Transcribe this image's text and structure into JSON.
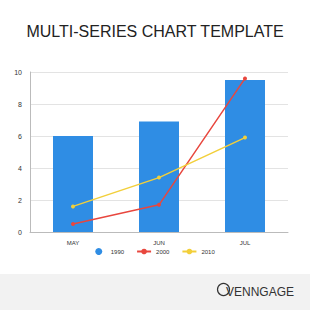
{
  "chart_data": {
    "type": "bar",
    "title": "MULTI-SERIES CHART TEMPLATE",
    "categories": [
      "MAY",
      "JUN",
      "JUL"
    ],
    "series": [
      {
        "name": "1990",
        "type": "bar",
        "color": "#2f8de4",
        "values": [
          6.0,
          6.9,
          9.5
        ]
      },
      {
        "name": "2000",
        "type": "line",
        "color": "#e8473e",
        "marker": "circle",
        "values": [
          0.5,
          1.7,
          9.6
        ]
      },
      {
        "name": "2010",
        "type": "line",
        "color": "#f2cf3a",
        "marker": "circle",
        "values": [
          1.6,
          3.4,
          5.9
        ]
      }
    ],
    "ylim": [
      0,
      10
    ],
    "yticks": [
      0,
      2,
      4,
      6,
      8,
      10
    ],
    "grid": true,
    "legend": "bottom",
    "annotations": [
      "VENNGAGE"
    ]
  }
}
